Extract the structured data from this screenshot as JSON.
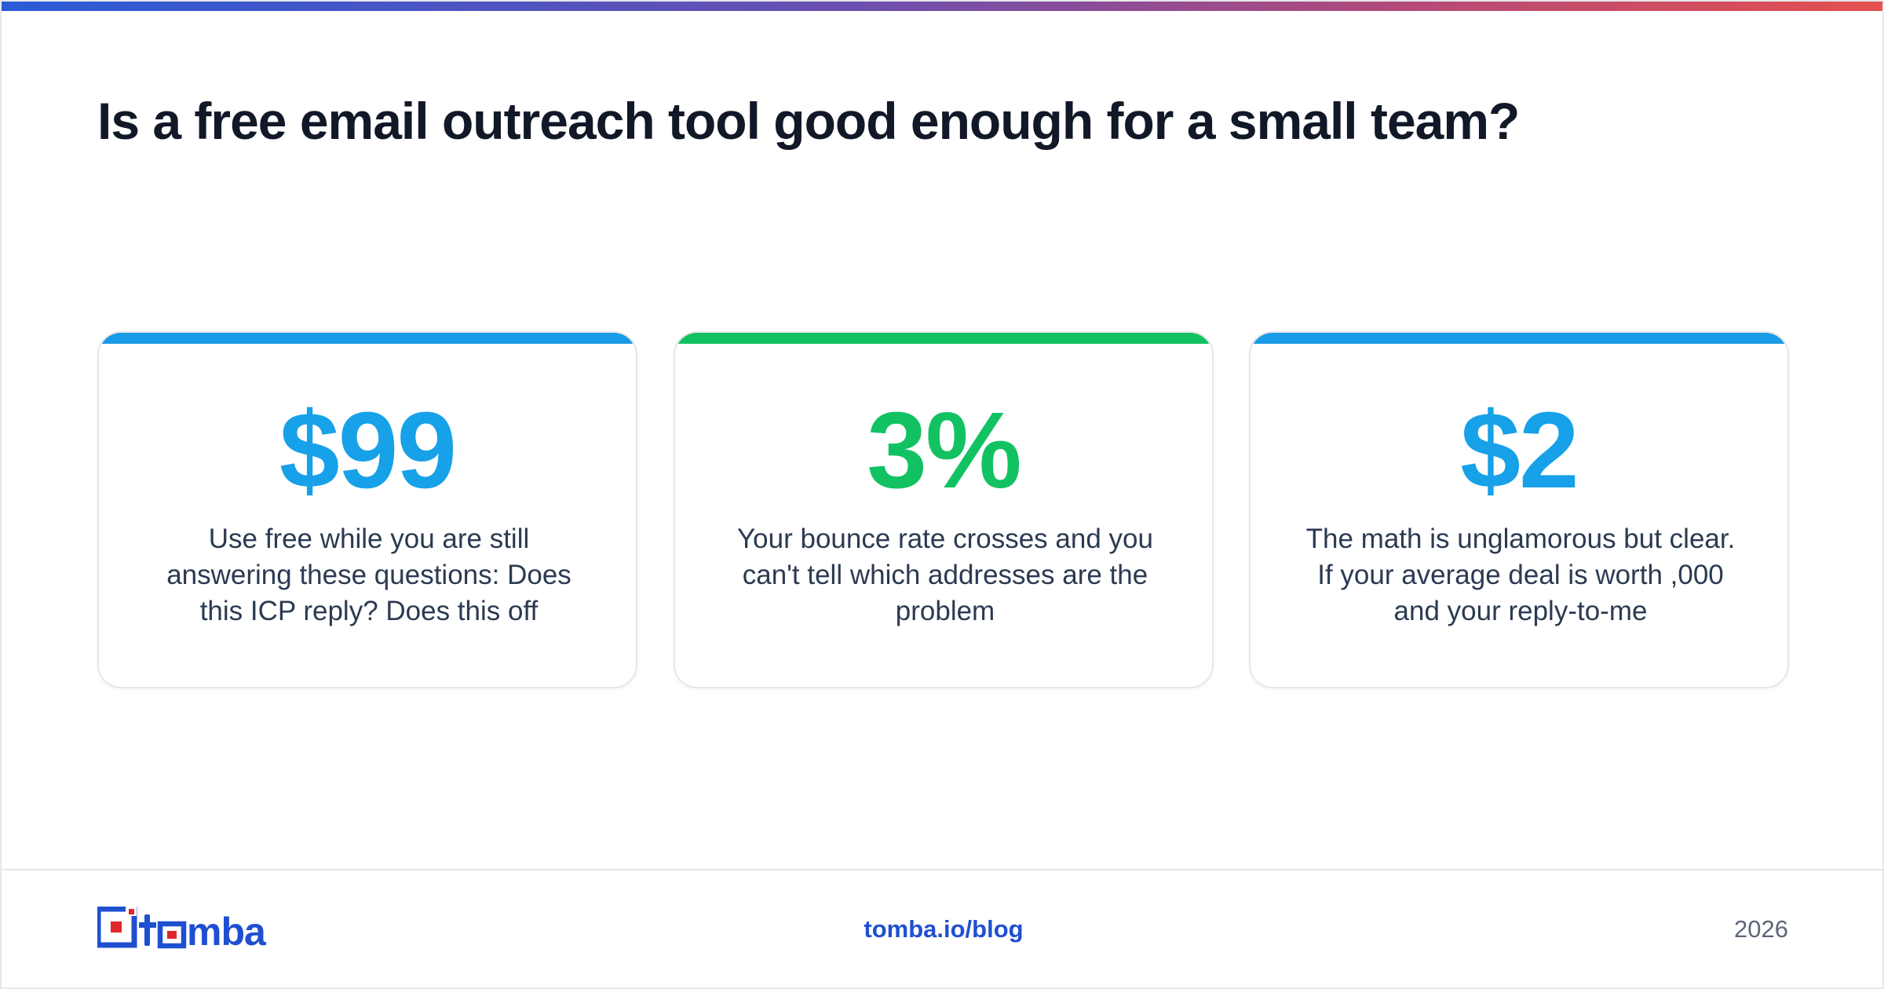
{
  "header": {
    "title": "Is a free email outreach tool good enough for a small team?"
  },
  "cards": [
    {
      "stat": "$99",
      "description": "Use free while you are still answering these questions: Does this ICP reply? Does this off",
      "accent_color": "#1a9be6",
      "stat_color": "#17a1e8"
    },
    {
      "stat": "3%",
      "description": "Your bounce rate crosses and you can't tell which addresses are the problem",
      "accent_color": "#12c262",
      "stat_color": "#12c262"
    },
    {
      "stat": "$2",
      "description": "The math is unglamorous but clear. If your average deal is worth ,000 and your reply-to-me",
      "accent_color": "#1a9be6",
      "stat_color": "#17a1e8"
    }
  ],
  "footer": {
    "logo_text": "tomba",
    "link": "tomba.io/blog",
    "year": "2026"
  },
  "colors": {
    "brand_blue": "#1f4fd1",
    "brand_red": "#e0262b",
    "title": "#111827"
  }
}
